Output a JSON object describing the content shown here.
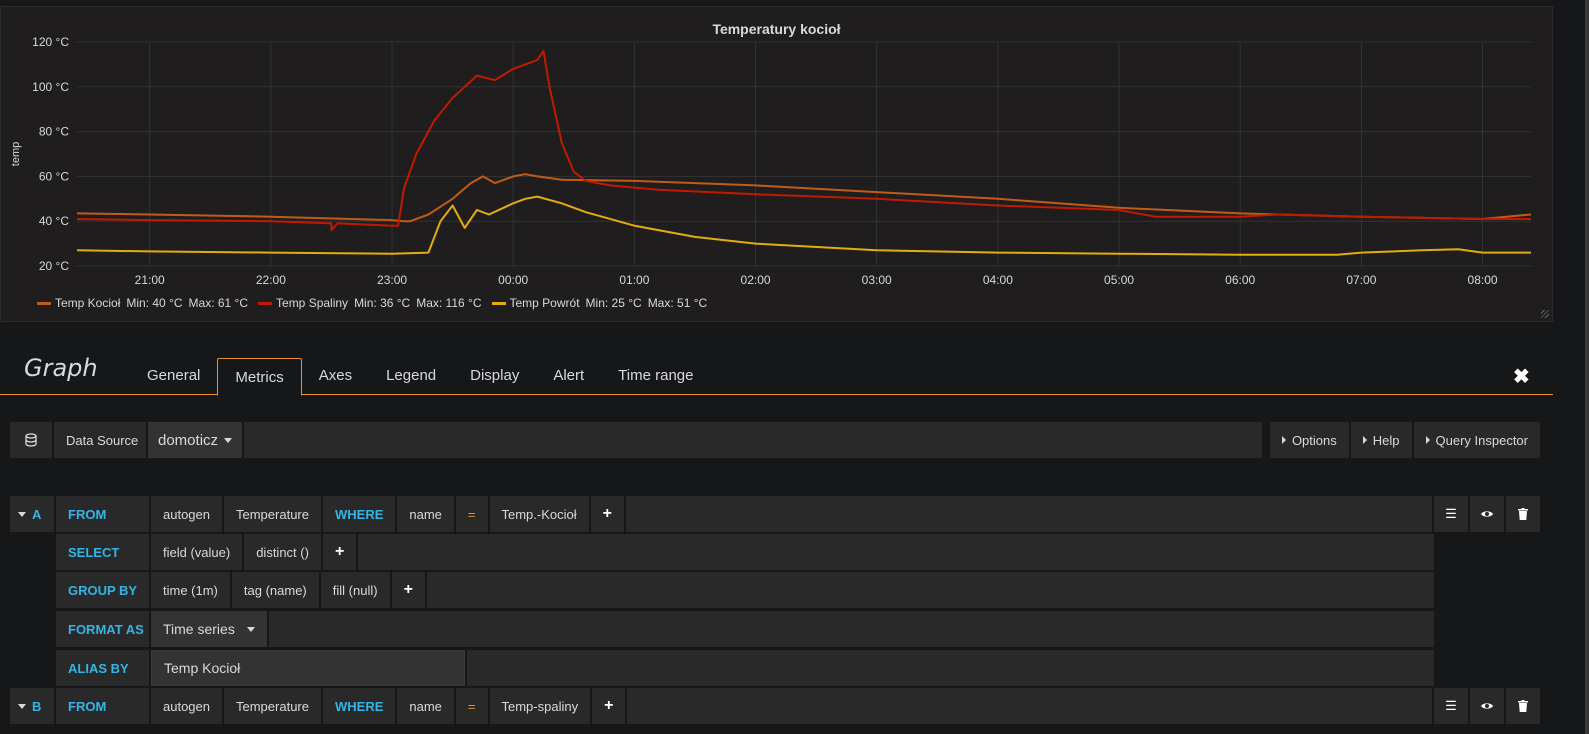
{
  "panel": {
    "title": "Temperatury kocioł",
    "ylabel": "temp"
  },
  "chart_data": {
    "type": "line",
    "title": "Temperatury kocioł",
    "ylabel": "temp",
    "xlabel": "",
    "ylim": [
      20,
      120
    ],
    "y_ticks": [
      "20 °C",
      "40 °C",
      "60 °C",
      "80 °C",
      "100 °C",
      "120 °C"
    ],
    "x_ticks": [
      "21:00",
      "22:00",
      "23:00",
      "00:00",
      "01:00",
      "02:00",
      "03:00",
      "04:00",
      "05:00",
      "06:00",
      "07:00",
      "08:00"
    ],
    "grid": true,
    "legend_position": "bottom-left",
    "x_unit": "hours since 21:00",
    "series": [
      {
        "name": "Temp Kocioł",
        "color": "#c15c17",
        "min_label": "Min: 40 °C",
        "max_label": "Max: 61 °C",
        "points": [
          [
            -0.6,
            43.5
          ],
          [
            0,
            43
          ],
          [
            1,
            42
          ],
          [
            2,
            40.5
          ],
          [
            2.1,
            40
          ],
          [
            2.15,
            40
          ],
          [
            2.3,
            43
          ],
          [
            2.5,
            50
          ],
          [
            2.65,
            57
          ],
          [
            2.75,
            60
          ],
          [
            2.85,
            57
          ],
          [
            3.0,
            60
          ],
          [
            3.1,
            61
          ],
          [
            3.2,
            60
          ],
          [
            3.4,
            58.5
          ],
          [
            4,
            58
          ],
          [
            5,
            56
          ],
          [
            6,
            53
          ],
          [
            7,
            50
          ],
          [
            8,
            46
          ],
          [
            9,
            43.5
          ],
          [
            10,
            42
          ],
          [
            11,
            41
          ],
          [
            11.4,
            43
          ]
        ]
      },
      {
        "name": "Temp Spaliny",
        "color": "#bf1b00",
        "min_label": "Min: 36 °C",
        "max_label": "Max: 116 °C",
        "points": [
          [
            -0.6,
            41
          ],
          [
            0,
            40.5
          ],
          [
            1,
            40
          ],
          [
            1.5,
            39
          ],
          [
            1.5,
            36
          ],
          [
            1.55,
            39
          ],
          [
            2,
            38
          ],
          [
            2.05,
            38
          ],
          [
            2.1,
            55
          ],
          [
            2.2,
            70
          ],
          [
            2.35,
            85
          ],
          [
            2.5,
            95
          ],
          [
            2.6,
            100
          ],
          [
            2.7,
            105
          ],
          [
            2.85,
            103
          ],
          [
            3.0,
            108
          ],
          [
            3.1,
            110
          ],
          [
            3.2,
            112
          ],
          [
            3.25,
            116
          ],
          [
            3.3,
            100
          ],
          [
            3.4,
            75
          ],
          [
            3.5,
            62
          ],
          [
            3.6,
            58
          ],
          [
            3.8,
            56
          ],
          [
            4.2,
            54
          ],
          [
            5,
            52
          ],
          [
            6,
            50
          ],
          [
            7,
            47
          ],
          [
            8,
            45
          ],
          [
            8.3,
            42
          ],
          [
            9,
            42
          ],
          [
            9.3,
            43
          ],
          [
            10,
            42
          ],
          [
            11,
            41
          ],
          [
            11.4,
            41
          ]
        ]
      },
      {
        "name": "Temp Powrót",
        "color": "#e5ac0e",
        "min_label": "Min: 25 °C",
        "max_label": "Max: 51 °C",
        "points": [
          [
            -0.6,
            27
          ],
          [
            0,
            26.5
          ],
          [
            1,
            26
          ],
          [
            2,
            25.5
          ],
          [
            2.3,
            26
          ],
          [
            2.4,
            40
          ],
          [
            2.5,
            47
          ],
          [
            2.6,
            37
          ],
          [
            2.7,
            45
          ],
          [
            2.8,
            43
          ],
          [
            3.0,
            48
          ],
          [
            3.1,
            50
          ],
          [
            3.2,
            51
          ],
          [
            3.4,
            48
          ],
          [
            3.6,
            44
          ],
          [
            4,
            38
          ],
          [
            4.5,
            33
          ],
          [
            5,
            30
          ],
          [
            6,
            27
          ],
          [
            7,
            26
          ],
          [
            8,
            25.5
          ],
          [
            9,
            25
          ],
          [
            9.8,
            25
          ],
          [
            10,
            26
          ],
          [
            10.5,
            27
          ],
          [
            10.8,
            27.5
          ],
          [
            11,
            26
          ],
          [
            11.4,
            26
          ]
        ]
      }
    ]
  },
  "editor": {
    "title": "Graph",
    "tabs": [
      "General",
      "Metrics",
      "Axes",
      "Legend",
      "Display",
      "Alert",
      "Time range"
    ],
    "active_tab": "Metrics",
    "datasource_label": "Data Source",
    "datasource_value": "domoticz",
    "options_label": "Options",
    "help_label": "Help",
    "query_inspector_label": "Query Inspector",
    "plus": "+",
    "close": "✖"
  },
  "queries": {
    "a": {
      "ref": "A",
      "from_kw": "FROM",
      "policy": "autogen",
      "measurement": "Temperature",
      "where_kw": "WHERE",
      "tag_key": "name",
      "operator": "=",
      "tag_value": "Temp.-Kocioł",
      "select_kw": "SELECT",
      "select_field": "field (value)",
      "select_fn": "distinct ()",
      "group_kw": "GROUP BY",
      "group_time": "time (1m)",
      "group_tag": "tag (name)",
      "group_fill": "fill (null)",
      "format_kw": "FORMAT AS",
      "format_value": "Time series",
      "alias_kw": "ALIAS BY",
      "alias_value": "Temp Kocioł"
    },
    "b": {
      "ref": "B",
      "from_kw": "FROM",
      "policy": "autogen",
      "measurement": "Temperature",
      "where_kw": "WHERE",
      "tag_key": "name",
      "operator": "=",
      "tag_value": "Temp-spaliny"
    }
  }
}
